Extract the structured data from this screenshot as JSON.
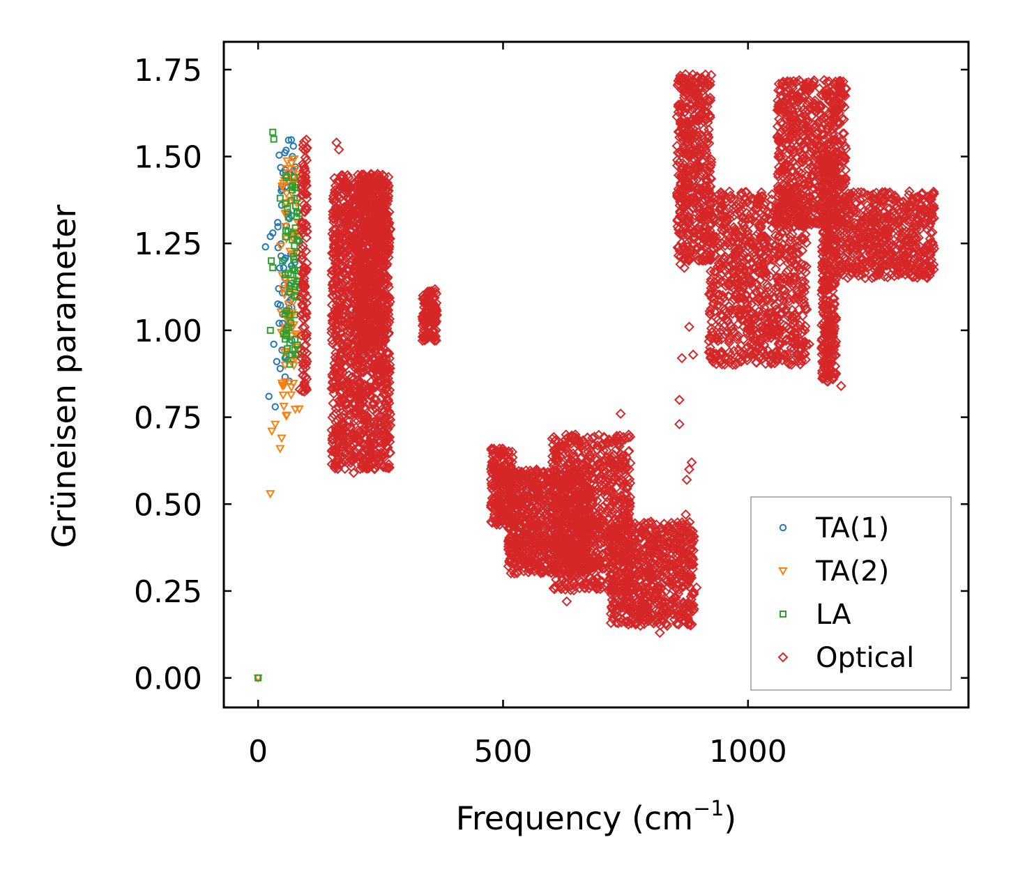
{
  "chart_data": {
    "type": "scatter",
    "title": "",
    "xlabel": "Frequency (cm",
    "xlabel_sup": "−1",
    "xlabel_close": ")",
    "ylabel": "Grüneisen parameter",
    "xlim": [
      -70,
      1450
    ],
    "ylim": [
      -0.085,
      1.83
    ],
    "xticks": [
      0,
      500,
      1000
    ],
    "xtick_labels": [
      "0",
      "500",
      "1000"
    ],
    "yticks": [
      0.0,
      0.25,
      0.5,
      0.75,
      1.0,
      1.25,
      1.5,
      1.75
    ],
    "ytick_labels": [
      "0.00",
      "0.25",
      "0.50",
      "0.75",
      "1.00",
      "1.25",
      "1.50",
      "1.75"
    ],
    "grid": false,
    "legend_position": "bottom-right",
    "series": [
      {
        "name": "TA(1)",
        "marker": "circle",
        "color": "#1f77b4",
        "points": [
          [
            0,
            0.0
          ],
          [
            15,
            1.24
          ],
          [
            22,
            0.81
          ],
          [
            25,
            1.27
          ],
          [
            30,
            1.28
          ],
          [
            32,
            0.96
          ],
          [
            35,
            0.78
          ],
          [
            38,
            0.91
          ],
          [
            40,
            1.31
          ],
          [
            42,
            1.12
          ],
          [
            45,
            0.89
          ],
          [
            48,
            1.36
          ],
          [
            50,
            1.02
          ],
          [
            52,
            1.18
          ],
          [
            55,
            0.92
          ],
          [
            58,
            1.3
          ],
          [
            60,
            1.41
          ],
          [
            62,
            1.08
          ],
          [
            65,
            1.45
          ],
          [
            67,
            1.22
          ],
          [
            70,
            1.5
          ],
          [
            72,
            1.53
          ],
          [
            74,
            1.38
          ],
          [
            76,
            1.47
          ],
          [
            78,
            1.42
          ],
          [
            80,
            1.34
          ],
          [
            82,
            1.26
          ]
        ],
        "clusters": [
          [
            [
              40,
              75
            ],
            [
              0.85,
              1.55
            ],
            60
          ]
        ]
      },
      {
        "name": "TA(2)",
        "marker": "triangle-down",
        "color": "#ff7f0e",
        "points": [
          [
            0,
            0.0
          ],
          [
            25,
            0.53
          ],
          [
            28,
            0.71
          ],
          [
            35,
            0.73
          ],
          [
            45,
            0.66
          ],
          [
            48,
            0.69
          ],
          [
            50,
            0.84
          ],
          [
            55,
            0.9
          ],
          [
            58,
            0.94
          ],
          [
            60,
            1.0
          ],
          [
            62,
            1.05
          ]
        ],
        "clusters": [
          [
            [
              45,
              85
            ],
            [
              0.75,
              1.5
            ],
            80
          ]
        ]
      },
      {
        "name": "LA",
        "marker": "square",
        "color": "#2ca02c",
        "points": [
          [
            0,
            0.0
          ],
          [
            30,
            1.57
          ],
          [
            32,
            1.55
          ],
          [
            25,
            1.0
          ],
          [
            27,
            1.2
          ],
          [
            30,
            1.18
          ],
          [
            45,
            1.38
          ],
          [
            50,
            1.2
          ],
          [
            52,
            0.99
          ],
          [
            55,
            1.16
          ],
          [
            60,
            1.35
          ],
          [
            65,
            1.12
          ],
          [
            70,
            1.26
          ],
          [
            75,
            1.1
          ],
          [
            78,
            1.41
          ],
          [
            80,
            1.38
          ],
          [
            82,
            0.93
          ]
        ],
        "clusters": [
          [
            [
              55,
              85
            ],
            [
              0.9,
              1.45
            ],
            60
          ]
        ]
      },
      {
        "name": "Optical",
        "marker": "diamond",
        "color": "#d62728",
        "points": [
          [
            160,
            1.54
          ],
          [
            165,
            1.52
          ],
          [
            160,
            0.84
          ],
          [
            175,
            0.65
          ],
          [
            190,
            0.63
          ],
          [
            195,
            0.59
          ],
          [
            85,
            0.83
          ],
          [
            92,
            0.87
          ],
          [
            345,
            1.1
          ],
          [
            360,
            0.97
          ],
          [
            520,
            0.31
          ],
          [
            540,
            0.38
          ],
          [
            560,
            0.45
          ],
          [
            630,
            0.22
          ],
          [
            740,
            0.76
          ],
          [
            745,
            0.25
          ],
          [
            820,
            0.13
          ],
          [
            835,
            0.15
          ],
          [
            860,
            0.8
          ],
          [
            860,
            0.73
          ],
          [
            862,
            1.19
          ],
          [
            865,
            0.92
          ],
          [
            870,
            1.18
          ],
          [
            873,
            0.47
          ],
          [
            875,
            0.57
          ],
          [
            880,
            0.6
          ],
          [
            880,
            1.01
          ],
          [
            882,
            0.37
          ],
          [
            885,
            0.62
          ],
          [
            888,
            0.93
          ],
          [
            895,
            0.26
          ],
          [
            980,
            1.35
          ],
          [
            1000,
            1.32
          ],
          [
            1045,
            1.05
          ],
          [
            1080,
            0.93
          ],
          [
            1090,
            1.04
          ],
          [
            1095,
            0.99
          ],
          [
            1100,
            1.53
          ],
          [
            1105,
            1.34
          ],
          [
            1110,
            1.19
          ],
          [
            1115,
            1.11
          ],
          [
            1120,
            1.06
          ],
          [
            1125,
            0.96
          ],
          [
            1100,
            0.96
          ],
          [
            1190,
            0.84
          ],
          [
            1210,
            1.39
          ],
          [
            1250,
            1.3
          ]
        ],
        "clusters": [
          [
            [
              88,
              100
            ],
            [
              0.82,
              1.55
            ],
            130
          ],
          [
            [
              150,
              270
            ],
            [
              0.6,
              1.45
            ],
            1400
          ],
          [
            [
              200,
              260
            ],
            [
              0.95,
              1.45
            ],
            500
          ],
          [
            [
              335,
              365
            ],
            [
              0.97,
              1.12
            ],
            120
          ],
          [
            [
              475,
              520
            ],
            [
              0.44,
              0.66
            ],
            200
          ],
          [
            [
              510,
              680
            ],
            [
              0.3,
              0.6
            ],
            900
          ],
          [
            [
              600,
              760
            ],
            [
              0.25,
              0.7
            ],
            800
          ],
          [
            [
              720,
              890
            ],
            [
              0.15,
              0.45
            ],
            700
          ],
          [
            [
              855,
              925
            ],
            [
              1.2,
              1.74
            ],
            500
          ],
          [
            [
              920,
              1120
            ],
            [
              0.9,
              1.4
            ],
            900
          ],
          [
            [
              1060,
              1200
            ],
            [
              1.3,
              1.72
            ],
            700
          ],
          [
            [
              1150,
              1180
            ],
            [
              0.85,
              1.5
            ],
            400
          ],
          [
            [
              1180,
              1380
            ],
            [
              1.15,
              1.4
            ],
            600
          ]
        ]
      }
    ]
  }
}
